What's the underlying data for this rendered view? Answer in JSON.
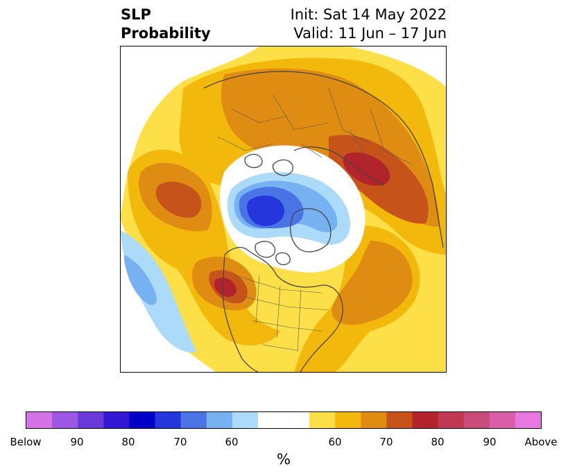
{
  "header": {
    "title_line1": "SLP",
    "title_line2": "Probability",
    "init_label": "Init: Sat 14 May 2022",
    "valid_label": "Valid: 11 Jun – 17 Jun"
  },
  "colorbar": {
    "unit": "%",
    "colors": [
      "#d573e6",
      "#9d57e3",
      "#6a3ad8",
      "#3417d2",
      "#0000c9",
      "#2437dc",
      "#4a74e6",
      "#76b2f2",
      "#acdaf9",
      "#ffffff",
      "#ffffff",
      "#fde048",
      "#f3b80c",
      "#df8c12",
      "#c6541a",
      "#b3232b",
      "#c03852",
      "#ca4a7a",
      "#da5ea7",
      "#e878e0"
    ],
    "tick_labels": [
      "Below",
      "90",
      "80",
      "70",
      "60",
      "60",
      "70",
      "80",
      "90",
      "Above"
    ]
  },
  "map": {
    "projection": "north-polar-stereographic",
    "palette": {
      "above_60": "#fde048",
      "above_65": "#f3b80c",
      "above_70": "#df8c12",
      "above_75": "#c6541a",
      "above_80": "#b3232b",
      "below_60": "#acdaf9",
      "below_65": "#76b2f2",
      "below_70": "#4a74e6",
      "below_75": "#2437dc",
      "coastline": "#444444"
    }
  }
}
